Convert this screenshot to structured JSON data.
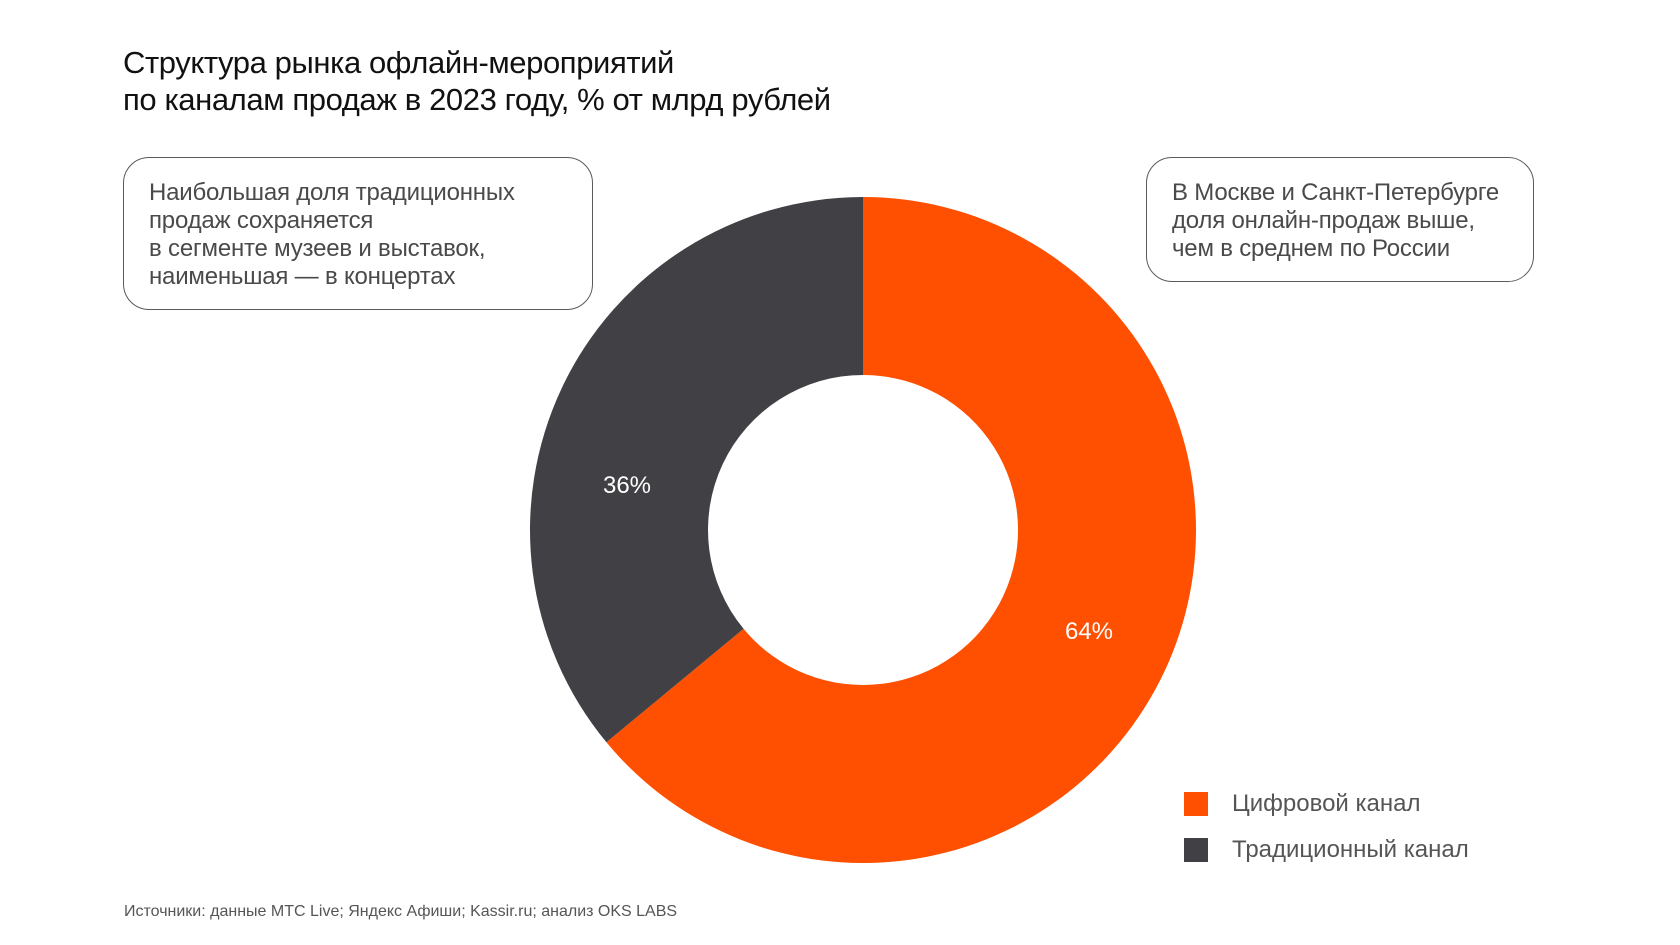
{
  "chart_data": {
    "type": "pie",
    "subtype": "donut",
    "title": [
      "Структура рынка офлайн-мероприятий",
      "по каналам продаж в 2023 году, % от млрд рублей"
    ],
    "series": [
      {
        "name": "Цифровой канал",
        "value": 64,
        "label": "64%",
        "color": "#FF4F00"
      },
      {
        "name": "Традиционный канал",
        "value": 36,
        "label": "36%",
        "color": "#414145"
      }
    ],
    "start_angle_deg": 0,
    "direction": "clockwise",
    "legend_placement": "bottom-right",
    "annotations": [
      [
        "Наибольшая доля традиционных",
        "продаж сохраняется",
        "в сегменте музеев и выставок,",
        "наименьшая — в концертах"
      ],
      [
        "В Москве и Санкт-Петербурге",
        "доля онлайн-продаж выше,",
        "чем в среднем по России"
      ]
    ],
    "source": "Источники: данные МТС Live; Яндекс Афиши; Kassir.ru; анализ OKS LABS"
  },
  "colors": {
    "digital": "#FF4F00",
    "traditional": "#414145",
    "text": "#111111",
    "muted_text": "#4a4a4a"
  }
}
